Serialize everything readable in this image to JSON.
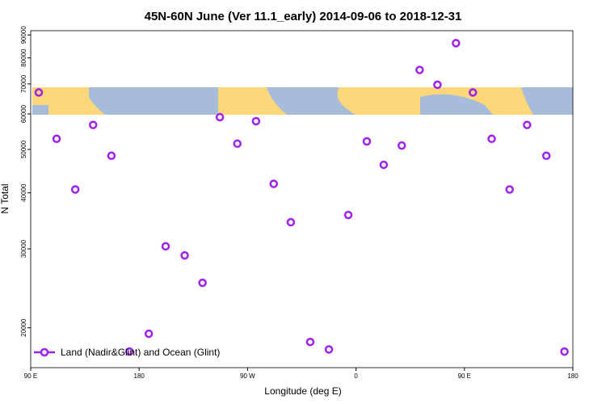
{
  "chart_data": {
    "type": "scatter",
    "title": "45N-60N June (Ver 11.1_early)   2014-09-06 to 2018-12-31",
    "xlabel": "Longitude (deg E)",
    "ylabel": "N Total",
    "log_y": true,
    "color": "#a020f0",
    "legend": "lower left",
    "series": [
      {
        "name": "Land (Nadir&Glint) and Ocean (Glint)",
        "color": "#a020f0",
        "x": [
          96.7,
          111.5,
          127,
          141.8,
          157,
          172,
          188,
          202,
          217.8,
          232.6,
          247,
          261.5,
          277,
          291.7,
          305.9,
          322,
          337.5,
          353.6,
          369,
          383,
          398,
          412.8,
          427.6,
          443,
          457,
          472.6,
          487.5,
          502,
          518,
          533
        ],
        "values": [
          67000,
          52800,
          40700,
          56700,
          48400,
          17700,
          19400,
          30400,
          29000,
          25200,
          59000,
          51500,
          57800,
          41900,
          34400,
          18600,
          17900,
          35700,
          52100,
          46200,
          51000,
          75200,
          69700,
          86300,
          67000,
          52800,
          40700,
          56700,
          48400,
          17700
        ]
      }
    ],
    "xlim": [
      90,
      540
    ],
    "xticks": [
      {
        "value": 90,
        "label": "90 E"
      },
      180,
      {
        "value": 270,
        "label": "90 W"
      },
      {
        "value": 360,
        "label": "0"
      },
      {
        "value": 450,
        "label": "90 E"
      },
      {
        "value": 540,
        "label": "180"
      }
    ],
    "ylim": [
      16300,
      92000
    ],
    "yticks": [
      20000,
      30000,
      40000,
      50000,
      60000,
      70000,
      80000,
      90000
    ]
  }
}
